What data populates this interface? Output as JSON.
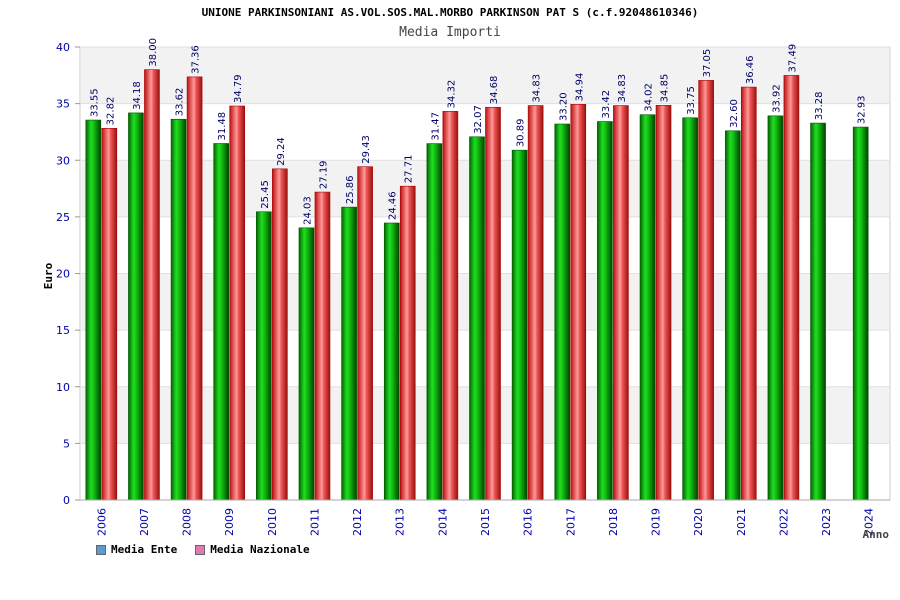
{
  "chart_data": {
    "type": "bar",
    "title": "UNIONE PARKINSONIANI AS.VOL.SOS.MAL.MORBO PARKINSON PAT S (c.f.92048610346)",
    "subtitle": "Media Importi",
    "xlabel": "Anno",
    "ylabel": "Euro",
    "ylim": [
      0,
      40
    ],
    "yticks": [
      0,
      5,
      10,
      15,
      20,
      25,
      30,
      35,
      40
    ],
    "grid": true,
    "legend_position": "bottom-left",
    "categories": [
      "2006",
      "2007",
      "2008",
      "2009",
      "2010",
      "2011",
      "2012",
      "2013",
      "2014",
      "2015",
      "2016",
      "2017",
      "2018",
      "2019",
      "2020",
      "2021",
      "2022",
      "2023",
      "2024"
    ],
    "series": [
      {
        "name": "Media Ente",
        "color": "#00aa00",
        "legend_color": "#5b9bd5",
        "values": [
          33.55,
          34.18,
          33.62,
          31.48,
          25.45,
          24.03,
          25.86,
          24.46,
          31.47,
          32.07,
          30.89,
          33.2,
          33.42,
          34.02,
          33.75,
          32.6,
          33.92,
          33.28,
          32.93
        ],
        "labels": [
          "33.55",
          "34.18",
          "33.62",
          "31.48",
          "25.45",
          "24.03",
          "25.86",
          "24.46",
          "31.47",
          "32.07",
          "30.89",
          "33.20",
          "33.42",
          "34.02",
          "33.75",
          "32.60",
          "33.92",
          "33.28",
          "32.93"
        ]
      },
      {
        "name": "Media Nazionale",
        "color": "#ee2222",
        "legend_color": "#e07bb0",
        "values": [
          32.82,
          38.0,
          37.36,
          34.79,
          29.24,
          27.19,
          29.43,
          27.71,
          34.32,
          34.68,
          34.83,
          34.94,
          34.83,
          34.85,
          37.05,
          36.46,
          37.49,
          null,
          null
        ],
        "labels": [
          "32.82",
          "38.00",
          "37.36",
          "34.79",
          "29.24",
          "27.19",
          "29.43",
          "27.71",
          "34.32",
          "34.68",
          "34.83",
          "34.94",
          "34.83",
          "34.85",
          "37.05",
          "36.46",
          "37.49",
          "",
          ""
        ]
      }
    ]
  }
}
